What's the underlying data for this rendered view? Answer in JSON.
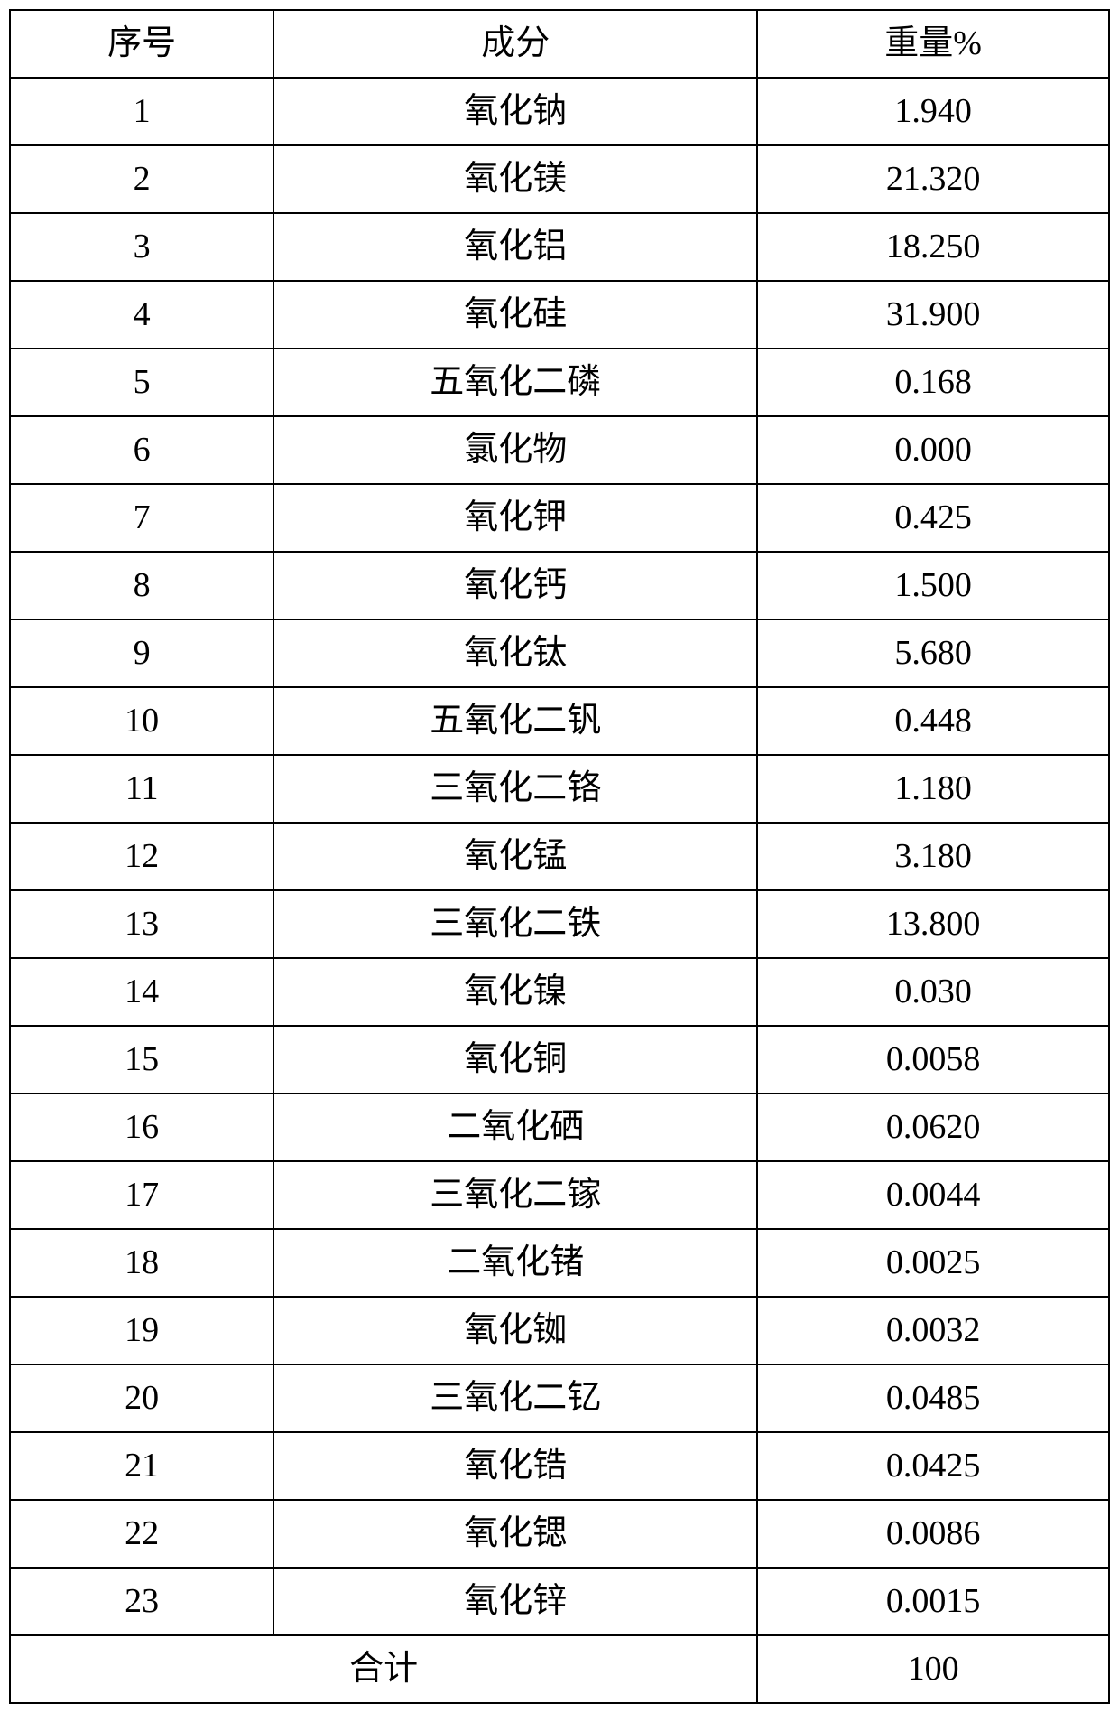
{
  "table": {
    "columns": [
      "序号",
      "成分",
      "重量%"
    ],
    "rows": [
      [
        "1",
        "氧化钠",
        "1.940"
      ],
      [
        "2",
        "氧化镁",
        "21.320"
      ],
      [
        "3",
        "氧化铝",
        "18.250"
      ],
      [
        "4",
        "氧化硅",
        "31.900"
      ],
      [
        "5",
        "五氧化二磷",
        "0.168"
      ],
      [
        "6",
        "氯化物",
        "0.000"
      ],
      [
        "7",
        "氧化钾",
        "0.425"
      ],
      [
        "8",
        "氧化钙",
        "1.500"
      ],
      [
        "9",
        "氧化钛",
        "5.680"
      ],
      [
        "10",
        "五氧化二钒",
        "0.448"
      ],
      [
        "11",
        "三氧化二铬",
        "1.180"
      ],
      [
        "12",
        "氧化锰",
        "3.180"
      ],
      [
        "13",
        "三氧化二铁",
        "13.800"
      ],
      [
        "14",
        "氧化镍",
        "0.030"
      ],
      [
        "15",
        "氧化铜",
        "0.0058"
      ],
      [
        "16",
        "二氧化硒",
        "0.0620"
      ],
      [
        "17",
        "三氧化二镓",
        "0.0044"
      ],
      [
        "18",
        "二氧化锗",
        "0.0025"
      ],
      [
        "19",
        "氧化铷",
        "0.0032"
      ],
      [
        "20",
        "三氧化二钇",
        "0.0485"
      ],
      [
        "21",
        "氧化锆",
        "0.0425"
      ],
      [
        "22",
        "氧化锶",
        "0.0086"
      ],
      [
        "23",
        "氧化锌",
        "0.0015"
      ]
    ],
    "total_label": "合计",
    "total_value": "100",
    "border_color": "#000000",
    "background_color": "#ffffff",
    "text_color": "#000000",
    "font_size": 38,
    "column_widths": [
      "24%",
      "44%",
      "32%"
    ]
  }
}
